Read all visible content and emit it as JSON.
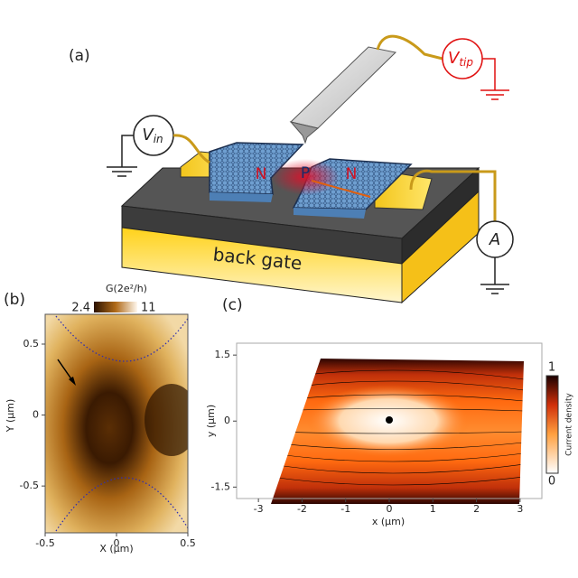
{
  "panel_a": {
    "label": "(a)",
    "v_in": "V",
    "v_in_sub": "in",
    "v_tip": "V",
    "v_tip_sub": "tip",
    "regions": [
      "N",
      "P",
      "N"
    ],
    "ammeter": "A",
    "substrate": "back gate"
  },
  "panel_b": {
    "label": "(b)",
    "colorbar_title": "G(2e²/h)",
    "colorbar_ticks": [
      2.4,
      11
    ],
    "xlabel": "X (μm)",
    "ylabel": "Y (μm)",
    "xlim": [
      -0.5,
      0.5
    ],
    "ylim": [
      -0.83,
      0.71
    ],
    "xticks": [
      -0.5,
      0,
      0.5
    ],
    "yticks": [
      -0.5,
      0,
      0.5
    ]
  },
  "panel_c": {
    "label": "(c)",
    "colorbar_title": "Current density",
    "colorbar_ticks": [
      0,
      1
    ],
    "xlabel": "x (μm)",
    "ylabel": "y (μm)",
    "xlim": [
      -3.5,
      3.5
    ],
    "ylim": [
      -1.76,
      1.77
    ],
    "xticks": [
      -3,
      -2,
      -1,
      0,
      1,
      2,
      3
    ],
    "yticks": [
      -1.5,
      0,
      1.5
    ]
  }
}
